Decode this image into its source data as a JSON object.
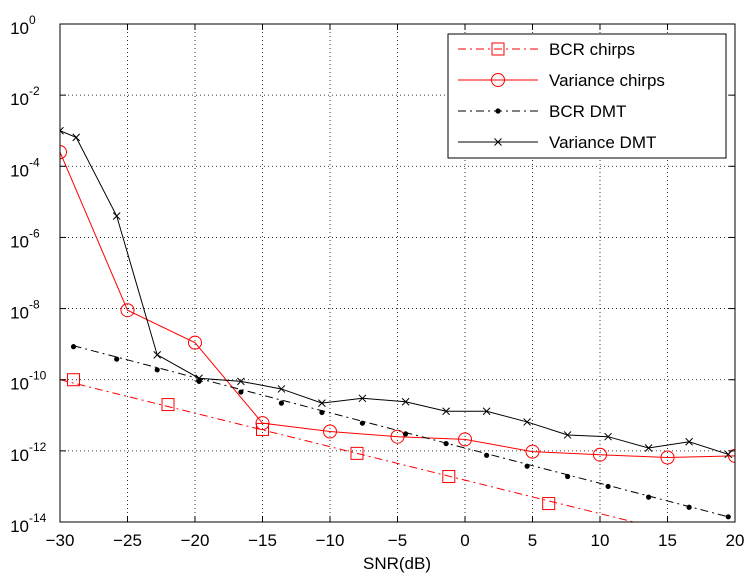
{
  "chart_data": {
    "type": "line",
    "title": "",
    "xlabel": "SNR(dB)",
    "ylabel": "",
    "xlim": [
      -30,
      20
    ],
    "ylim_log10": [
      -14,
      0
    ],
    "y_scale": "log",
    "grid": true,
    "grid_style": "dotted",
    "legend_position": "top-right",
    "x_ticks": [
      -30,
      -25,
      -20,
      -15,
      -10,
      -5,
      0,
      5,
      10,
      15,
      20
    ],
    "x_tick_labels": [
      "−30",
      "−25",
      "−20",
      "−15",
      "−10",
      "−5",
      "0",
      "5",
      "10",
      "15",
      "20"
    ],
    "y_ticks_exp": [
      0,
      -2,
      -4,
      -6,
      -8,
      -10,
      -12,
      -14
    ],
    "y_tick_base": "10",
    "y_tick_exp_labels": [
      "0",
      "-2",
      "-4",
      "-6",
      "-8",
      "-10",
      "-12",
      "-14"
    ],
    "series": [
      {
        "name": "BCR chirps",
        "color": "#ff0000",
        "line": "dashdot",
        "marker": "square",
        "line_x": [
          -30,
          12.5
        ],
        "line_y": [
          1e-10,
          1e-14
        ],
        "marker_x": [
          -29,
          -22,
          -15,
          -8,
          -1.2,
          6.2
        ],
        "marker_y": [
          1e-10,
          2e-11,
          4e-12,
          8.5e-13,
          1.9e-13,
          3.3e-14
        ]
      },
      {
        "name": "Variance chirps",
        "color": "#ff0000",
        "line": "solid",
        "marker": "circle",
        "x": [
          -30,
          -25,
          -20,
          -15,
          -10,
          -5,
          0,
          5,
          10,
          15,
          20
        ],
        "y": [
          0.00025,
          9e-09,
          1.1e-09,
          6e-12,
          3.5e-12,
          2.5e-12,
          2.1e-12,
          9.5e-13,
          7.8e-13,
          6.5e-13,
          7.2e-13
        ]
      },
      {
        "name": "BCR DMT",
        "color": "#000000",
        "line": "dashdot",
        "marker": "dot",
        "line_x": [
          -29,
          19.5
        ],
        "line_y": [
          9e-10,
          1.4e-14
        ],
        "marker_x": [
          -29,
          -25.8,
          -22.8,
          -19.7,
          -16.6,
          -13.6,
          -10.6,
          -7.6,
          -4.4,
          -1.4,
          1.6,
          4.6,
          7.6,
          10.6,
          13.6,
          16.6,
          19.5
        ],
        "marker_y": [
          8.5e-10,
          3.8e-10,
          1.9e-10,
          9e-11,
          4.5e-11,
          2.2e-11,
          1.2e-11,
          6e-12,
          3e-12,
          1.6e-12,
          7.5e-13,
          3.7e-13,
          1.9e-13,
          1e-13,
          5e-14,
          2.6e-14,
          1.4e-14
        ]
      },
      {
        "name": "Variance DMT",
        "color": "#000000",
        "line": "solid",
        "marker": "x",
        "x": [
          -30,
          -28.8,
          -25.8,
          -22.8,
          -19.7,
          -16.6,
          -13.6,
          -10.6,
          -7.6,
          -4.4,
          -1.4,
          1.6,
          4.6,
          7.6,
          10.6,
          13.6,
          16.6,
          19.5
        ],
        "y": [
          0.001,
          0.00065,
          4e-06,
          5e-10,
          1.1e-10,
          9e-11,
          5.5e-11,
          2.2e-11,
          3e-11,
          2.4e-11,
          1.3e-11,
          1.3e-11,
          6.5e-12,
          2.8e-12,
          2.5e-12,
          1.2e-12,
          1.8e-12,
          8e-13
        ]
      }
    ]
  }
}
